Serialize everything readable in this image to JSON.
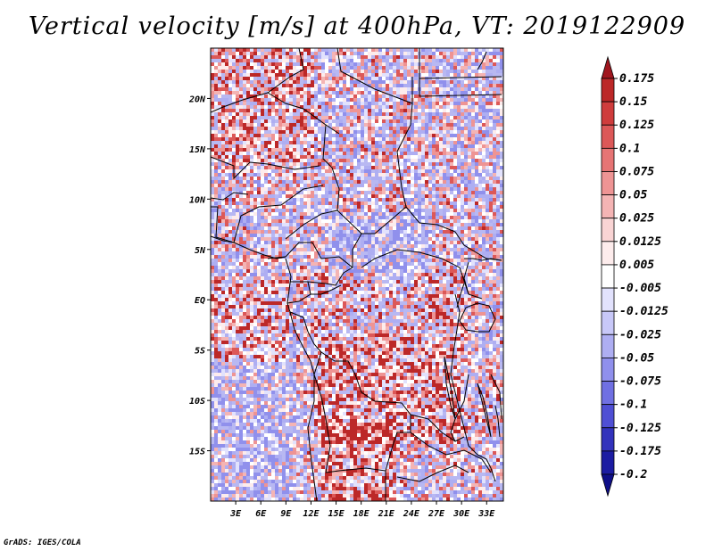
{
  "title": "Vertical velocity [m/s] at 400hPa, VT: 2019122909",
  "credit": "GrADS: IGES/COLA",
  "map": {
    "lon_range": [
      0,
      35
    ],
    "lat_range": [
      -20,
      25
    ],
    "lat_ticks": [
      {
        "value": 20,
        "label": "20N"
      },
      {
        "value": 15,
        "label": "15N"
      },
      {
        "value": 10,
        "label": "10N"
      },
      {
        "value": 5,
        "label": "5N"
      },
      {
        "value": 0,
        "label": "EQ"
      },
      {
        "value": -5,
        "label": "5S"
      },
      {
        "value": -10,
        "label": "10S"
      },
      {
        "value": -15,
        "label": "15S"
      }
    ],
    "lon_ticks": [
      {
        "value": 3,
        "label": "3E"
      },
      {
        "value": 6,
        "label": "6E"
      },
      {
        "value": 9,
        "label": "9E"
      },
      {
        "value": 12,
        "label": "12E"
      },
      {
        "value": 15,
        "label": "15E"
      },
      {
        "value": 18,
        "label": "18E"
      },
      {
        "value": 21,
        "label": "21E"
      },
      {
        "value": 24,
        "label": "24E"
      },
      {
        "value": 27,
        "label": "27E"
      },
      {
        "value": 30,
        "label": "30E"
      },
      {
        "value": 33,
        "label": "33E"
      }
    ]
  },
  "colorbar": {
    "levels": [
      "0.175",
      "0.15",
      "0.125",
      "0.1",
      "0.075",
      "0.05",
      "0.025",
      "0.0125",
      "0.005",
      "-0.005",
      "-0.0125",
      "-0.025",
      "-0.05",
      "-0.075",
      "-0.1",
      "-0.125",
      "-0.175",
      "-0.2"
    ],
    "colors": [
      "#a0161e",
      "#bc2828",
      "#cf3c3c",
      "#dc5858",
      "#e67474",
      "#ee9494",
      "#f4b4b4",
      "#f9d4d4",
      "#fdecec",
      "#ffffff",
      "#e2e2fd",
      "#c8c8f8",
      "#aeaef2",
      "#9090ec",
      "#7070e2",
      "#4f4fd4",
      "#3232bc",
      "#1c1ca2",
      "#0f0f88"
    ]
  }
}
